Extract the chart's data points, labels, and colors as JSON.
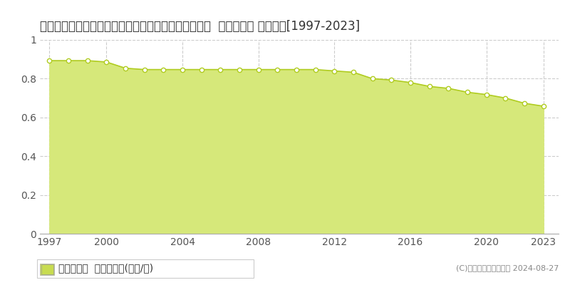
{
  "title": "宮崎県東臼杵郡椎葉村大字下福良字山中２２７番６０  基準地価格 地価推移[1997-2023]",
  "years": [
    1997,
    1998,
    1999,
    2000,
    2001,
    2002,
    2003,
    2004,
    2005,
    2006,
    2007,
    2008,
    2009,
    2010,
    2011,
    2012,
    2013,
    2014,
    2015,
    2016,
    2017,
    2018,
    2019,
    2020,
    2021,
    2022,
    2023
  ],
  "values": [
    0.893,
    0.893,
    0.893,
    0.886,
    0.854,
    0.847,
    0.847,
    0.847,
    0.847,
    0.847,
    0.847,
    0.847,
    0.847,
    0.847,
    0.847,
    0.84,
    0.833,
    0.8,
    0.793,
    0.78,
    0.76,
    0.75,
    0.73,
    0.718,
    0.7,
    0.673,
    0.658
  ],
  "line_color": "#b0cc20",
  "fill_color": "#d6e87a",
  "marker_color": "#b0cc20",
  "marker_face": "#ffffff",
  "ylim": [
    0,
    1.0
  ],
  "yticks": [
    0,
    0.2,
    0.4,
    0.6,
    0.8,
    1.0
  ],
  "xlim_left": 1996.5,
  "xlim_right": 2023.8,
  "xtick_years": [
    1997,
    2000,
    2004,
    2008,
    2012,
    2016,
    2020,
    2023
  ],
  "grid_color": "#cccccc",
  "bg_color": "#ffffff",
  "legend_label": "基準地価格  平均坪単価(万円/坪)",
  "watermark": "(C)土地価格ドットコム 2024-08-27",
  "title_fontsize": 12,
  "axis_fontsize": 10,
  "legend_fontsize": 10,
  "legend_square_color": "#c8dc50"
}
